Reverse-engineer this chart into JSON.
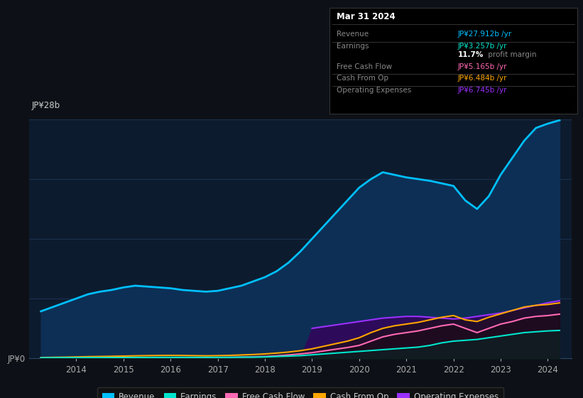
{
  "bg_color": "#0d1117",
  "plot_bg_color": "#0d1b2e",
  "grid_color": "#1e3a5f",
  "ylim": [
    0,
    28
  ],
  "years": [
    2013.25,
    2013.5,
    2013.75,
    2014.0,
    2014.25,
    2014.5,
    2014.75,
    2015.0,
    2015.25,
    2015.5,
    2015.75,
    2016.0,
    2016.25,
    2016.5,
    2016.75,
    2017.0,
    2017.25,
    2017.5,
    2017.75,
    2018.0,
    2018.25,
    2018.5,
    2018.75,
    2019.0,
    2019.25,
    2019.5,
    2019.75,
    2020.0,
    2020.25,
    2020.5,
    2020.75,
    2021.0,
    2021.25,
    2021.5,
    2021.75,
    2022.0,
    2022.25,
    2022.5,
    2022.75,
    2023.0,
    2023.25,
    2023.5,
    2023.75,
    2024.0,
    2024.25
  ],
  "revenue": [
    5.5,
    6.0,
    6.5,
    7.0,
    7.5,
    7.8,
    8.0,
    8.3,
    8.5,
    8.4,
    8.3,
    8.2,
    8.0,
    7.9,
    7.8,
    7.9,
    8.2,
    8.5,
    9.0,
    9.5,
    10.2,
    11.2,
    12.5,
    14.0,
    15.5,
    17.0,
    18.5,
    20.0,
    21.0,
    21.8,
    21.5,
    21.2,
    21.0,
    20.8,
    20.5,
    20.2,
    18.5,
    17.5,
    19.0,
    21.5,
    23.5,
    25.5,
    27.0,
    27.5,
    27.9
  ],
  "earnings": [
    0.05,
    0.05,
    0.06,
    0.06,
    0.07,
    0.07,
    0.08,
    0.08,
    0.09,
    0.09,
    0.1,
    0.1,
    0.1,
    0.1,
    0.1,
    0.1,
    0.1,
    0.12,
    0.12,
    0.15,
    0.2,
    0.25,
    0.3,
    0.4,
    0.5,
    0.6,
    0.7,
    0.8,
    0.9,
    1.0,
    1.1,
    1.2,
    1.3,
    1.5,
    1.8,
    2.0,
    2.1,
    2.2,
    2.4,
    2.6,
    2.8,
    3.0,
    3.1,
    3.2,
    3.257
  ],
  "free_cash_flow": [
    0.02,
    0.02,
    0.02,
    0.03,
    0.03,
    0.04,
    0.05,
    0.06,
    0.07,
    0.08,
    0.08,
    0.07,
    0.06,
    0.06,
    0.07,
    0.08,
    0.1,
    0.13,
    0.16,
    0.2,
    0.28,
    0.38,
    0.5,
    0.65,
    0.85,
    1.05,
    1.25,
    1.5,
    2.0,
    2.5,
    2.8,
    3.0,
    3.2,
    3.5,
    3.8,
    4.0,
    3.5,
    3.0,
    3.5,
    4.0,
    4.3,
    4.7,
    4.9,
    5.0,
    5.165
  ],
  "cash_from_op": [
    0.08,
    0.1,
    0.12,
    0.15,
    0.18,
    0.2,
    0.22,
    0.25,
    0.28,
    0.3,
    0.32,
    0.33,
    0.32,
    0.3,
    0.28,
    0.3,
    0.33,
    0.38,
    0.43,
    0.5,
    0.6,
    0.72,
    0.88,
    1.1,
    1.4,
    1.7,
    2.0,
    2.4,
    3.0,
    3.5,
    3.8,
    4.0,
    4.2,
    4.5,
    4.8,
    5.0,
    4.5,
    4.3,
    4.8,
    5.2,
    5.6,
    6.0,
    6.2,
    6.3,
    6.484
  ],
  "operating_expenses": [
    0.0,
    0.0,
    0.0,
    0.0,
    0.0,
    0.0,
    0.0,
    0.0,
    0.0,
    0.0,
    0.0,
    0.0,
    0.0,
    0.0,
    0.0,
    0.0,
    0.0,
    0.0,
    0.0,
    0.0,
    0.0,
    0.0,
    0.0,
    3.5,
    3.7,
    3.9,
    4.1,
    4.3,
    4.5,
    4.7,
    4.8,
    4.9,
    4.9,
    4.8,
    4.7,
    4.6,
    4.7,
    4.9,
    5.1,
    5.3,
    5.6,
    5.9,
    6.2,
    6.5,
    6.745
  ],
  "revenue_color": "#00bfff",
  "revenue_fill": "#0d3060",
  "earnings_color": "#00e5cc",
  "fcf_color": "#ff69b4",
  "cfop_color": "#ffa500",
  "opex_color": "#9b30ff",
  "opex_fill": "#3a1068",
  "legend_items": [
    "Revenue",
    "Earnings",
    "Free Cash Flow",
    "Cash From Op",
    "Operating Expenses"
  ],
  "legend_colors": [
    "#00bfff",
    "#00e5cc",
    "#ff69b4",
    "#ffa500",
    "#9b30ff"
  ],
  "info_box_date": "Mar 31 2024",
  "info_rows": [
    {
      "label": "Revenue",
      "value": "JP¥27.912b /yr",
      "color": "#00bfff"
    },
    {
      "label": "Earnings",
      "value": "JP¥3.257b /yr",
      "color": "#00e5cc"
    },
    {
      "label": "",
      "value": "11.7% profit margin",
      "color": "#ffffff"
    },
    {
      "label": "Free Cash Flow",
      "value": "JP¥5.165b /yr",
      "color": "#ff69b4"
    },
    {
      "label": "Cash From Op",
      "value": "JP¥6.484b /yr",
      "color": "#ffa500"
    },
    {
      "label": "Operating Expenses",
      "value": "JP¥6.745b /yr",
      "color": "#9b30ff"
    }
  ]
}
